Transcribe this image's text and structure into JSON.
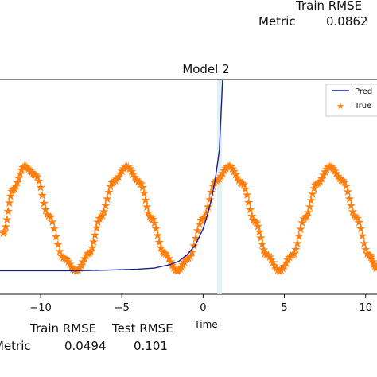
{
  "top_table": {
    "header": "Train RMSE",
    "row_label": "Metric",
    "value": "0.0862"
  },
  "chart_data": {
    "type": "line",
    "title": "Model 2",
    "xlabel": "Time",
    "ylabel": "",
    "xlim": [
      -12.5,
      10.7
    ],
    "ylim": [
      -1.45,
      2.65
    ],
    "x_ticks": [
      -10,
      -5,
      0,
      5,
      10
    ],
    "x_tick_labels": [
      "−10",
      "−5",
      "0",
      "5",
      "10"
    ],
    "legend_entries": [
      "Pred",
      "True"
    ],
    "legend_position": "top-right",
    "series": [
      {
        "name": "Pred",
        "color": "#1f1f8c",
        "style": "line",
        "x": [
          -12.5,
          -10,
          -8,
          -6,
          -4,
          -3,
          -2,
          -1.5,
          -1,
          -0.5,
          0,
          0.25,
          0.5,
          0.75,
          1.0,
          1.2
        ],
        "y": [
          -1.0,
          -1.0,
          -1.0,
          -0.99,
          -0.97,
          -0.95,
          -0.88,
          -0.82,
          -0.7,
          -0.52,
          -0.2,
          0.05,
          0.35,
          0.75,
          1.3,
          2.65
        ]
      },
      {
        "name": "True",
        "color": "#ff7f0e",
        "style": "star-markers",
        "x": [
          -12.3,
          -11.7,
          -11.0,
          -10.3,
          -9.5,
          -8.6,
          -7.8,
          -7.0,
          -6.3,
          -5.5,
          -4.7,
          -3.9,
          -3.2,
          -2.4,
          -1.6,
          -0.9,
          0,
          0.8,
          1.6,
          2.4,
          3.2,
          3.9,
          4.7,
          5.5,
          6.3,
          7.0,
          7.8,
          8.6,
          9.4,
          10.2,
          10.7
        ],
        "y": [
          -0.28,
          0.55,
          0.99,
          0.83,
          0.05,
          -0.75,
          -1.0,
          -0.66,
          0.03,
          0.71,
          0.99,
          0.69,
          0.01,
          -0.66,
          -1.0,
          -0.76,
          0.0,
          0.72,
          1.0,
          0.67,
          -0.06,
          -0.69,
          -1.0,
          -0.7,
          0.02,
          0.66,
          0.99,
          0.72,
          0.03,
          -0.7,
          -0.95
        ]
      }
    ]
  },
  "bottom_table": {
    "headers": [
      "Train RMSE",
      "Test RMSE"
    ],
    "row_label": "Metric",
    "values": [
      "0.0494",
      "0.101"
    ]
  }
}
